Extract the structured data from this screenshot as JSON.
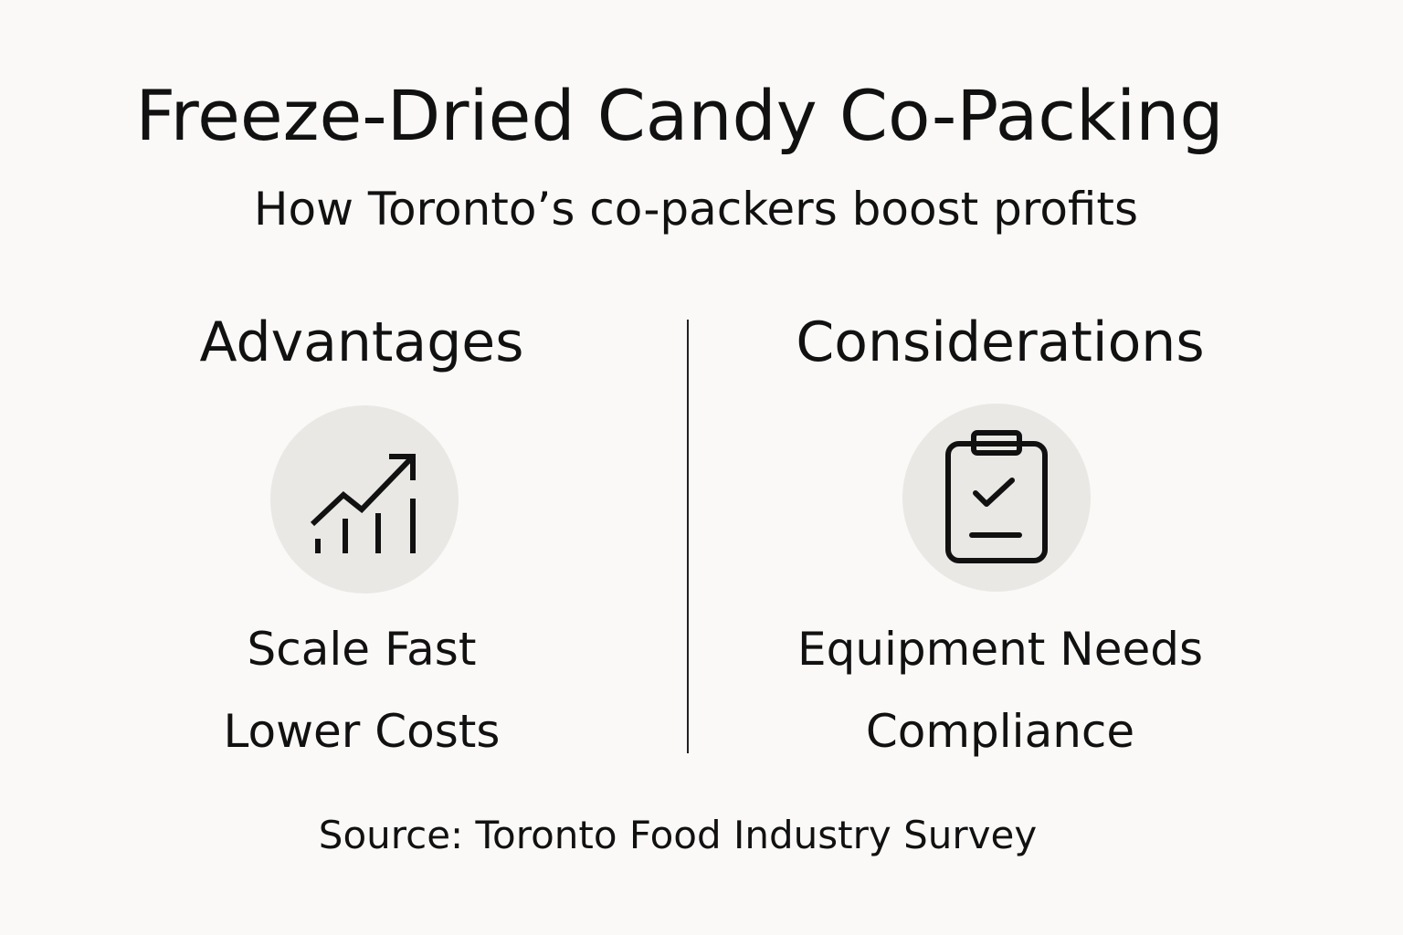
{
  "header": {
    "title": "Freeze-Dried Candy Co-Packing",
    "subtitle": "How Toronto’s co-packers boost profits"
  },
  "columns": [
    {
      "heading": "Advantages",
      "items": [
        "Scale Fast",
        "Lower Costs"
      ]
    },
    {
      "heading": "Considerations",
      "items": [
        "Equipment Needs",
        "Compliance"
      ]
    }
  ],
  "footer": {
    "source": "Source: Toronto Food Industry Survey"
  }
}
